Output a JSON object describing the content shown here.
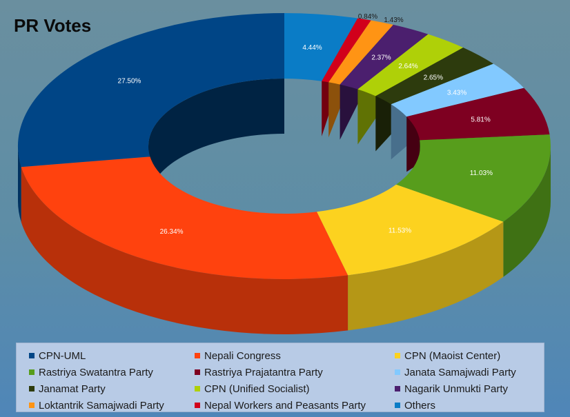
{
  "chart_data": {
    "type": "pie",
    "title": "PR Votes",
    "legend_position": "bottom",
    "slices": [
      {
        "name": "Others",
        "value": 4.44,
        "label": "4.44%",
        "color": "#0a7cc6"
      },
      {
        "name": "Nepal Workers and Peasants Party",
        "value": 0.84,
        "label": "0.84%",
        "color": "#d1001b"
      },
      {
        "name": "Loktantrik Samajwadi Party",
        "value": 1.43,
        "label": "1.43%",
        "color": "#ff9414"
      },
      {
        "name": "Nagarik Unmukti Party",
        "value": 2.37,
        "label": "2.37%",
        "color": "#4b1f6e"
      },
      {
        "name": "CPN (Unified Socialist)",
        "value": 2.64,
        "label": "2.64%",
        "color": "#afd008"
      },
      {
        "name": "Janamat Party",
        "value": 2.65,
        "label": "2.65%",
        "color": "#2d3b0d"
      },
      {
        "name": "Janata Samajwadi Party",
        "value": 3.43,
        "label": "3.43%",
        "color": "#82c9ff"
      },
      {
        "name": "Rastriya Prajatantra Party",
        "value": 5.81,
        "label": "5.81%",
        "color": "#7e0021"
      },
      {
        "name": "Rastriya Swatantra Party",
        "value": 11.03,
        "label": "11.03%",
        "color": "#579d1c"
      },
      {
        "name": "CPN (Maoist Center)",
        "value": 11.53,
        "label": "11.53%",
        "color": "#fcd21f"
      },
      {
        "name": "Nepali Congress",
        "value": 26.34,
        "label": "26.34%",
        "color": "#ff420e"
      },
      {
        "name": "CPN-UML",
        "value": 27.5,
        "label": "27.50%",
        "color": "#004586"
      }
    ]
  },
  "legend": [
    {
      "label": "CPN-UML",
      "color": "#004586"
    },
    {
      "label": "Nepali Congress",
      "color": "#ff420e"
    },
    {
      "label": "CPN (Maoist Center)",
      "color": "#fcd21f"
    },
    {
      "label": "Rastriya Swatantra Party",
      "color": "#579d1c"
    },
    {
      "label": "Rastriya Prajatantra Party",
      "color": "#7e0021"
    },
    {
      "label": "Janata Samajwadi Party",
      "color": "#82c9ff"
    },
    {
      "label": "Janamat Party",
      "color": "#2d3b0d"
    },
    {
      "label": "CPN (Unified Socialist)",
      "color": "#afd008"
    },
    {
      "label": "Nagarik Unmukti Party",
      "color": "#4b1f6e"
    },
    {
      "label": "Loktantrik Samajwadi Party",
      "color": "#ff9414"
    },
    {
      "label": "Nepal Workers and Peasants Party",
      "color": "#d1001b"
    },
    {
      "label": "Others",
      "color": "#0a7cc6"
    }
  ]
}
